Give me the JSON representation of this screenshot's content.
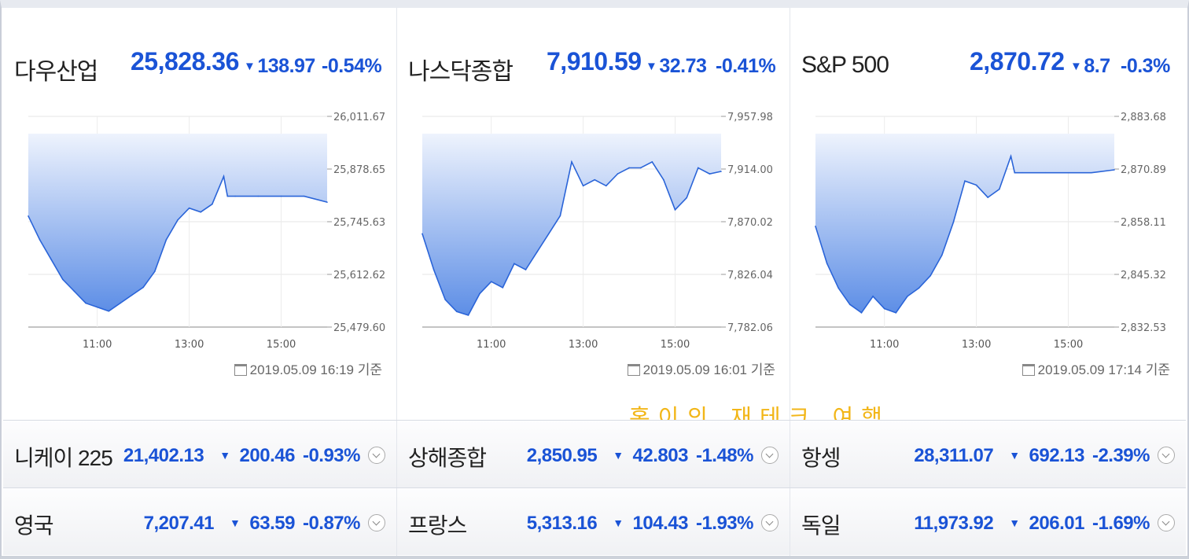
{
  "colors": {
    "down": "#1a53d6",
    "line": "#2a64d8",
    "fill_top": "#eef3fd",
    "fill_bottom": "#5d8ee6",
    "watermark": "#f2b618"
  },
  "icons": {
    "down": "down-triangle-icon",
    "calendar": "calendar-clock-icon",
    "expand": "expand-chevron-icon"
  },
  "panels": [
    {
      "name": "다우산업",
      "price": "25,828.36",
      "change": "138.97",
      "percent": "-0.54%",
      "timestamp": "2019.05.09 16:19",
      "basis": "기준"
    },
    {
      "name": "나스닥종합",
      "price": "7,910.59",
      "change": "32.73",
      "percent": "-0.41%",
      "timestamp": "2019.05.09 16:01",
      "basis": "기준"
    },
    {
      "name": "S&P 500",
      "price": "2,870.72",
      "change": "8.7",
      "percent": "-0.3%",
      "timestamp": "2019.05.09 17:14",
      "basis": "기준"
    }
  ],
  "chart_data": [
    {
      "type": "area",
      "title": "다우산업",
      "x_ticks": [
        "11:00",
        "13:00",
        "15:00"
      ],
      "y_ticks": [
        "26,011.67",
        "25,878.65",
        "25,745.63",
        "25,612.62",
        "25,479.60"
      ],
      "ylim": [
        25479.6,
        26011.67
      ],
      "grid": true,
      "x": [
        "09:30",
        "09:45",
        "10:00",
        "10:15",
        "10:30",
        "10:45",
        "11:00",
        "11:15",
        "11:30",
        "11:45",
        "12:00",
        "12:15",
        "12:30",
        "12:45",
        "13:00",
        "13:15",
        "13:30",
        "13:45",
        "13:50",
        "14:00",
        "14:30",
        "15:00",
        "15:30",
        "16:00"
      ],
      "values": [
        25760,
        25700,
        25650,
        25600,
        25570,
        25540,
        25530,
        25520,
        25540,
        25560,
        25580,
        25620,
        25700,
        25750,
        25780,
        25770,
        25790,
        25860,
        25810,
        25810,
        25810,
        25810,
        25810,
        25795
      ]
    },
    {
      "type": "area",
      "title": "나스닥종합",
      "x_ticks": [
        "11:00",
        "13:00",
        "15:00"
      ],
      "y_ticks": [
        "7,957.98",
        "7,914.00",
        "7,870.02",
        "7,826.04",
        "7,782.06"
      ],
      "ylim": [
        7782.06,
        7957.98
      ],
      "grid": true,
      "x": [
        "09:30",
        "09:45",
        "10:00",
        "10:15",
        "10:30",
        "10:45",
        "11:00",
        "11:15",
        "11:30",
        "11:45",
        "12:00",
        "12:15",
        "12:30",
        "12:45",
        "13:00",
        "13:15",
        "13:30",
        "13:45",
        "14:00",
        "14:15",
        "14:30",
        "14:45",
        "15:00",
        "15:15",
        "15:30",
        "15:45",
        "16:00"
      ],
      "values": [
        7860,
        7830,
        7805,
        7795,
        7792,
        7810,
        7820,
        7815,
        7835,
        7830,
        7845,
        7860,
        7875,
        7920,
        7900,
        7905,
        7900,
        7910,
        7915,
        7915,
        7920,
        7905,
        7880,
        7890,
        7915,
        7910,
        7912
      ]
    },
    {
      "type": "area",
      "title": "S&P 500",
      "x_ticks": [
        "11:00",
        "13:00",
        "15:00"
      ],
      "y_ticks": [
        "2,883.68",
        "2,870.89",
        "2,858.11",
        "2,845.32",
        "2,832.53"
      ],
      "ylim": [
        2832.53,
        2883.68
      ],
      "grid": true,
      "x": [
        "09:30",
        "09:45",
        "10:00",
        "10:15",
        "10:30",
        "10:45",
        "11:00",
        "11:15",
        "11:30",
        "11:45",
        "12:00",
        "12:15",
        "12:30",
        "12:45",
        "13:00",
        "13:15",
        "13:30",
        "13:45",
        "13:50",
        "14:00",
        "14:30",
        "15:00",
        "15:30",
        "16:00"
      ],
      "values": [
        2857,
        2848,
        2842,
        2838,
        2836,
        2840,
        2837,
        2836,
        2840,
        2842,
        2845,
        2850,
        2858,
        2868,
        2867,
        2864,
        2866,
        2874,
        2870,
        2870,
        2870,
        2870,
        2870,
        2870.7
      ]
    }
  ],
  "watermark": "홍이의 재테크 여행",
  "rows": [
    [
      {
        "name": "니케이 225",
        "price": "21,402.13",
        "change": "200.46",
        "percent": "-0.93%"
      },
      {
        "name": "상해종합",
        "price": "2,850.95",
        "change": "42.803",
        "percent": "-1.48%"
      },
      {
        "name": "항셍",
        "price": "28,311.07",
        "change": "692.13",
        "percent": "-2.39%"
      }
    ],
    [
      {
        "name": "영국",
        "price": "7,207.41",
        "change": "63.59",
        "percent": "-0.87%"
      },
      {
        "name": "프랑스",
        "price": "5,313.16",
        "change": "104.43",
        "percent": "-1.93%"
      },
      {
        "name": "독일",
        "price": "11,973.92",
        "change": "206.01",
        "percent": "-1.69%"
      }
    ]
  ]
}
